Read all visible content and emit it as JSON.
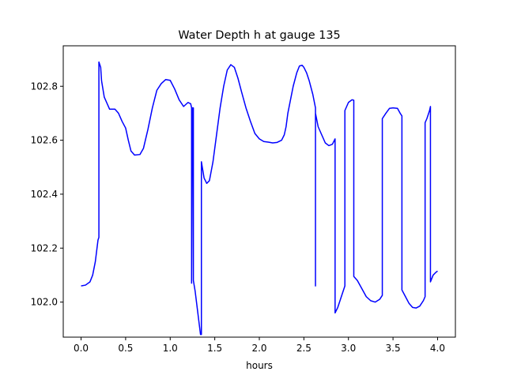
{
  "chart_data": {
    "type": "line",
    "title": "Water Depth h at gauge 135",
    "xlabel": "hours",
    "ylabel": "",
    "xlim": [
      -0.2,
      4.2
    ],
    "ylim": [
      101.87,
      102.95
    ],
    "grid": false,
    "x_ticks": [
      {
        "value": 0.0,
        "label": "0.0"
      },
      {
        "value": 0.5,
        "label": "0.5"
      },
      {
        "value": 1.0,
        "label": "1.0"
      },
      {
        "value": 1.5,
        "label": "1.5"
      },
      {
        "value": 2.0,
        "label": "2.0"
      },
      {
        "value": 2.5,
        "label": "2.5"
      },
      {
        "value": 3.0,
        "label": "3.0"
      },
      {
        "value": 3.5,
        "label": "3.5"
      },
      {
        "value": 4.0,
        "label": "4.0"
      }
    ],
    "y_ticks": [
      {
        "value": 102.0,
        "label": "102.0"
      },
      {
        "value": 102.2,
        "label": "102.2"
      },
      {
        "value": 102.4,
        "label": "102.4"
      },
      {
        "value": 102.6,
        "label": "102.6"
      },
      {
        "value": 102.8,
        "label": "102.8"
      }
    ],
    "series": [
      {
        "color": "#0000ff",
        "points": [
          [
            0.0,
            102.06
          ],
          [
            0.05,
            102.063
          ],
          [
            0.1,
            102.075
          ],
          [
            0.13,
            102.1
          ],
          [
            0.16,
            102.15
          ],
          [
            0.19,
            102.23
          ],
          [
            0.2,
            102.24
          ],
          [
            0.2,
            102.89
          ],
          [
            0.22,
            102.87
          ],
          [
            0.23,
            102.82
          ],
          [
            0.26,
            102.76
          ],
          [
            0.32,
            102.715
          ],
          [
            0.38,
            102.715
          ],
          [
            0.42,
            102.7
          ],
          [
            0.46,
            102.67
          ],
          [
            0.5,
            102.645
          ],
          [
            0.53,
            102.6
          ],
          [
            0.56,
            102.56
          ],
          [
            0.6,
            102.545
          ],
          [
            0.66,
            102.547
          ],
          [
            0.7,
            102.57
          ],
          [
            0.75,
            102.64
          ],
          [
            0.8,
            102.72
          ],
          [
            0.85,
            102.785
          ],
          [
            0.9,
            102.81
          ],
          [
            0.95,
            102.825
          ],
          [
            1.0,
            102.822
          ],
          [
            1.05,
            102.79
          ],
          [
            1.1,
            102.75
          ],
          [
            1.15,
            102.725
          ],
          [
            1.2,
            102.74
          ],
          [
            1.23,
            102.735
          ],
          [
            1.24,
            102.72
          ],
          [
            1.24,
            102.07
          ],
          [
            1.25,
            102.72
          ],
          [
            1.26,
            102.72
          ],
          [
            1.26,
            102.08
          ],
          [
            1.28,
            102.04
          ],
          [
            1.31,
            101.96
          ],
          [
            1.34,
            101.88
          ],
          [
            1.35,
            101.88
          ],
          [
            1.35,
            102.52
          ],
          [
            1.38,
            102.46
          ],
          [
            1.41,
            102.44
          ],
          [
            1.44,
            102.45
          ],
          [
            1.48,
            102.52
          ],
          [
            1.52,
            102.62
          ],
          [
            1.56,
            102.72
          ],
          [
            1.6,
            102.8
          ],
          [
            1.64,
            102.86
          ],
          [
            1.68,
            102.88
          ],
          [
            1.72,
            102.87
          ],
          [
            1.76,
            102.83
          ],
          [
            1.8,
            102.78
          ],
          [
            1.85,
            102.72
          ],
          [
            1.9,
            102.67
          ],
          [
            1.95,
            102.625
          ],
          [
            2.0,
            102.605
          ],
          [
            2.05,
            102.595
          ],
          [
            2.1,
            102.593
          ],
          [
            2.15,
            102.59
          ],
          [
            2.2,
            102.592
          ],
          [
            2.25,
            102.6
          ],
          [
            2.28,
            102.62
          ],
          [
            2.3,
            102.65
          ],
          [
            2.32,
            102.7
          ],
          [
            2.35,
            102.75
          ],
          [
            2.38,
            102.8
          ],
          [
            2.42,
            102.85
          ],
          [
            2.45,
            102.875
          ],
          [
            2.48,
            102.878
          ],
          [
            2.5,
            102.87
          ],
          [
            2.53,
            102.85
          ],
          [
            2.56,
            102.82
          ],
          [
            2.6,
            102.77
          ],
          [
            2.63,
            102.72
          ],
          [
            2.63,
            102.06
          ],
          [
            2.63,
            102.7
          ],
          [
            2.66,
            102.65
          ],
          [
            2.7,
            102.62
          ],
          [
            2.74,
            102.59
          ],
          [
            2.78,
            102.58
          ],
          [
            2.82,
            102.585
          ],
          [
            2.85,
            102.605
          ],
          [
            2.85,
            101.96
          ],
          [
            2.88,
            101.98
          ],
          [
            2.92,
            102.02
          ],
          [
            2.96,
            102.06
          ],
          [
            2.96,
            102.71
          ],
          [
            3.0,
            102.74
          ],
          [
            3.04,
            102.75
          ],
          [
            3.06,
            102.748
          ],
          [
            3.06,
            102.095
          ],
          [
            3.1,
            102.08
          ],
          [
            3.15,
            102.05
          ],
          [
            3.2,
            102.02
          ],
          [
            3.25,
            102.005
          ],
          [
            3.3,
            102.0
          ],
          [
            3.35,
            102.01
          ],
          [
            3.38,
            102.025
          ],
          [
            3.38,
            102.68
          ],
          [
            3.42,
            102.7
          ],
          [
            3.46,
            102.718
          ],
          [
            3.5,
            102.72
          ],
          [
            3.55,
            102.718
          ],
          [
            3.58,
            102.7
          ],
          [
            3.6,
            102.69
          ],
          [
            3.6,
            102.045
          ],
          [
            3.64,
            102.02
          ],
          [
            3.68,
            101.995
          ],
          [
            3.72,
            101.98
          ],
          [
            3.76,
            101.978
          ],
          [
            3.8,
            101.985
          ],
          [
            3.84,
            102.005
          ],
          [
            3.86,
            102.02
          ],
          [
            3.86,
            102.665
          ],
          [
            3.88,
            102.68
          ],
          [
            3.91,
            102.71
          ],
          [
            3.92,
            102.725
          ],
          [
            3.92,
            102.075
          ],
          [
            3.95,
            102.1
          ],
          [
            3.98,
            102.11
          ],
          [
            4.0,
            102.115
          ]
        ]
      }
    ]
  }
}
